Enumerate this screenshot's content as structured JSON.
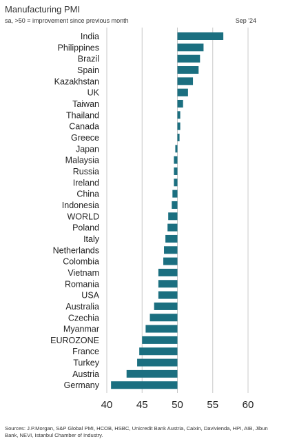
{
  "header": {
    "title": "Manufacturing PMI",
    "subtitle": "sa, >50 = improvement since previous month",
    "date": "Sep '24"
  },
  "footer": {
    "source": "Sources: J.P.Morgan, S&P Global PMI, HCOB, HSBC, Unicredit Bank Austria, Caixin, Davivienda, HPI, AIB, Jibun Bank, NEVI, Istanbul Chamber of Industry."
  },
  "colors": {
    "bar": "#1b6f80",
    "grid": "#c8c8c8"
  },
  "chart_data": {
    "type": "bar",
    "orientation": "horizontal",
    "title": "Manufacturing PMI",
    "subtitle": "sa, >50 = improvement since previous month",
    "baseline": 50,
    "xlim": [
      40,
      60
    ],
    "xticks": [
      40,
      45,
      50,
      55,
      60
    ],
    "grid": "vertical",
    "categories": [
      "India",
      "Philippines",
      "Brazil",
      "Spain",
      "Kazakhstan",
      "UK",
      "Taiwan",
      "Thailand",
      "Canada",
      "Greece",
      "Japan",
      "Malaysia",
      "Russia",
      "Ireland",
      "China",
      "Indonesia",
      "WORLD",
      "Poland",
      "Italy",
      "Netherlands",
      "Colombia",
      "Vietnam",
      "Romania",
      "USA",
      "Australia",
      "Czechia",
      "Myanmar",
      "EUROZONE",
      "France",
      "Turkey",
      "Austria",
      "Germany"
    ],
    "values": [
      56.5,
      53.7,
      53.2,
      53.0,
      52.2,
      51.5,
      50.8,
      50.4,
      50.4,
      50.3,
      49.7,
      49.5,
      49.5,
      49.5,
      49.3,
      49.2,
      48.7,
      48.6,
      48.3,
      48.1,
      48.0,
      47.3,
      47.3,
      47.3,
      46.7,
      46.1,
      45.5,
      45.0,
      44.6,
      44.3,
      42.8,
      40.6
    ]
  }
}
